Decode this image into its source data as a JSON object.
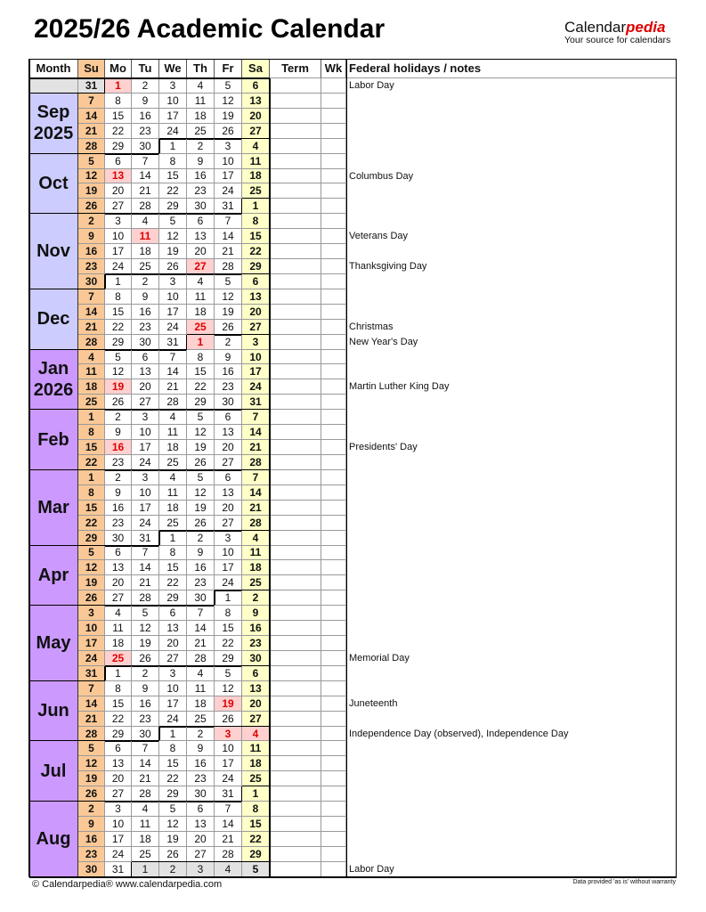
{
  "title": "2025/26 Academic Calendar",
  "logo": {
    "brand_main": "Calendar",
    "brand_accent": "pedia",
    "tagline": "Your source for calendars"
  },
  "headers": [
    "Month",
    "Su",
    "Mo",
    "Tu",
    "We",
    "Th",
    "Fr",
    "Sa",
    "Term",
    "Wk",
    "Federal holidays / notes"
  ],
  "colors": {
    "sunday": "#fac896",
    "saturday": "#ffffc8",
    "holiday_bg": "#ffd0d0",
    "holiday_text": "#e00000",
    "outside": "#e2e2e2",
    "month_fall": "#ccccff",
    "month_spring": "#cc99ff"
  },
  "lead_week": {
    "days": [
      31,
      1,
      2,
      3,
      4,
      5,
      6
    ],
    "holiday_cols": [
      1
    ],
    "outside_cols": [
      0
    ],
    "note": "Labor Day"
  },
  "months": [
    {
      "name": "Sep",
      "year": "2025",
      "color": "#ccccff",
      "weeks": [
        {
          "days": [
            7,
            8,
            9,
            10,
            11,
            12,
            13
          ]
        },
        {
          "days": [
            14,
            15,
            16,
            17,
            18,
            19,
            20
          ]
        },
        {
          "days": [
            21,
            22,
            23,
            24,
            25,
            26,
            27
          ]
        },
        {
          "days": [
            28,
            29,
            30,
            1,
            2,
            3,
            4
          ]
        }
      ]
    },
    {
      "name": "Oct",
      "year": "",
      "color": "#ccccff",
      "weeks": [
        {
          "days": [
            5,
            6,
            7,
            8,
            9,
            10,
            11
          ]
        },
        {
          "days": [
            12,
            13,
            14,
            15,
            16,
            17,
            18
          ],
          "holiday_cols": [
            1
          ],
          "note": "Columbus Day"
        },
        {
          "days": [
            19,
            20,
            21,
            22,
            23,
            24,
            25
          ]
        },
        {
          "days": [
            26,
            27,
            28,
            29,
            30,
            31,
            1
          ]
        }
      ]
    },
    {
      "name": "Nov",
      "year": "",
      "color": "#ccccff",
      "weeks": [
        {
          "days": [
            2,
            3,
            4,
            5,
            6,
            7,
            8
          ]
        },
        {
          "days": [
            9,
            10,
            11,
            12,
            13,
            14,
            15
          ],
          "holiday_cols": [
            2
          ],
          "note": "Veterans Day"
        },
        {
          "days": [
            16,
            17,
            18,
            19,
            20,
            21,
            22
          ]
        },
        {
          "days": [
            23,
            24,
            25,
            26,
            27,
            28,
            29
          ],
          "holiday_cols": [
            4
          ],
          "note": "Thanksgiving Day"
        },
        {
          "days": [
            30,
            1,
            2,
            3,
            4,
            5,
            6
          ]
        }
      ]
    },
    {
      "name": "Dec",
      "year": "",
      "color": "#ccccff",
      "weeks": [
        {
          "days": [
            7,
            8,
            9,
            10,
            11,
            12,
            13
          ]
        },
        {
          "days": [
            14,
            15,
            16,
            17,
            18,
            19,
            20
          ]
        },
        {
          "days": [
            21,
            22,
            23,
            24,
            25,
            26,
            27
          ],
          "holiday_cols": [
            4
          ],
          "note": "Christmas"
        },
        {
          "days": [
            28,
            29,
            30,
            31,
            1,
            2,
            3
          ],
          "holiday_cols": [
            4
          ],
          "note": "New Year's Day"
        }
      ]
    },
    {
      "name": "Jan",
      "year": "2026",
      "color": "#cc99ff",
      "weeks": [
        {
          "days": [
            4,
            5,
            6,
            7,
            8,
            9,
            10
          ]
        },
        {
          "days": [
            11,
            12,
            13,
            14,
            15,
            16,
            17
          ]
        },
        {
          "days": [
            18,
            19,
            20,
            21,
            22,
            23,
            24
          ],
          "holiday_cols": [
            1
          ],
          "note": "Martin Luther King Day"
        },
        {
          "days": [
            25,
            26,
            27,
            28,
            29,
            30,
            31
          ]
        }
      ]
    },
    {
      "name": "Feb",
      "year": "",
      "color": "#cc99ff",
      "weeks": [
        {
          "days": [
            1,
            2,
            3,
            4,
            5,
            6,
            7
          ]
        },
        {
          "days": [
            8,
            9,
            10,
            11,
            12,
            13,
            14
          ]
        },
        {
          "days": [
            15,
            16,
            17,
            18,
            19,
            20,
            21
          ],
          "holiday_cols": [
            1
          ],
          "note": "Presidents' Day"
        },
        {
          "days": [
            22,
            23,
            24,
            25,
            26,
            27,
            28
          ]
        }
      ]
    },
    {
      "name": "Mar",
      "year": "",
      "color": "#cc99ff",
      "weeks": [
        {
          "days": [
            1,
            2,
            3,
            4,
            5,
            6,
            7
          ]
        },
        {
          "days": [
            8,
            9,
            10,
            11,
            12,
            13,
            14
          ]
        },
        {
          "days": [
            15,
            16,
            17,
            18,
            19,
            20,
            21
          ]
        },
        {
          "days": [
            22,
            23,
            24,
            25,
            26,
            27,
            28
          ]
        },
        {
          "days": [
            29,
            30,
            31,
            1,
            2,
            3,
            4
          ]
        }
      ]
    },
    {
      "name": "Apr",
      "year": "",
      "color": "#cc99ff",
      "weeks": [
        {
          "days": [
            5,
            6,
            7,
            8,
            9,
            10,
            11
          ]
        },
        {
          "days": [
            12,
            13,
            14,
            15,
            16,
            17,
            18
          ]
        },
        {
          "days": [
            19,
            20,
            21,
            22,
            23,
            24,
            25
          ]
        },
        {
          "days": [
            26,
            27,
            28,
            29,
            30,
            1,
            2
          ]
        }
      ]
    },
    {
      "name": "May",
      "year": "",
      "color": "#cc99ff",
      "weeks": [
        {
          "days": [
            3,
            4,
            5,
            6,
            7,
            8,
            9
          ]
        },
        {
          "days": [
            10,
            11,
            12,
            13,
            14,
            15,
            16
          ]
        },
        {
          "days": [
            17,
            18,
            19,
            20,
            21,
            22,
            23
          ]
        },
        {
          "days": [
            24,
            25,
            26,
            27,
            28,
            29,
            30
          ],
          "holiday_cols": [
            1
          ],
          "note": "Memorial Day"
        },
        {
          "days": [
            31,
            1,
            2,
            3,
            4,
            5,
            6
          ]
        }
      ]
    },
    {
      "name": "Jun",
      "year": "",
      "color": "#cc99ff",
      "weeks": [
        {
          "days": [
            7,
            8,
            9,
            10,
            11,
            12,
            13
          ]
        },
        {
          "days": [
            14,
            15,
            16,
            17,
            18,
            19,
            20
          ],
          "holiday_cols": [
            5
          ],
          "note": "Juneteenth"
        },
        {
          "days": [
            21,
            22,
            23,
            24,
            25,
            26,
            27
          ]
        },
        {
          "days": [
            28,
            29,
            30,
            1,
            2,
            3,
            4
          ],
          "holiday_cols": [
            5,
            6
          ],
          "note": "Independence Day (observed), Independence Day"
        }
      ]
    },
    {
      "name": "Jul",
      "year": "",
      "color": "#cc99ff",
      "weeks": [
        {
          "days": [
            5,
            6,
            7,
            8,
            9,
            10,
            11
          ]
        },
        {
          "days": [
            12,
            13,
            14,
            15,
            16,
            17,
            18
          ]
        },
        {
          "days": [
            19,
            20,
            21,
            22,
            23,
            24,
            25
          ]
        },
        {
          "days": [
            26,
            27,
            28,
            29,
            30,
            31,
            1
          ]
        }
      ]
    },
    {
      "name": "Aug",
      "year": "",
      "color": "#cc99ff",
      "weeks": [
        {
          "days": [
            2,
            3,
            4,
            5,
            6,
            7,
            8
          ]
        },
        {
          "days": [
            9,
            10,
            11,
            12,
            13,
            14,
            15
          ]
        },
        {
          "days": [
            16,
            17,
            18,
            19,
            20,
            21,
            22
          ]
        },
        {
          "days": [
            23,
            24,
            25,
            26,
            27,
            28,
            29
          ]
        },
        {
          "days": [
            30,
            31,
            1,
            2,
            3,
            4,
            5
          ],
          "outside_cols": [
            2,
            3,
            4,
            5,
            6
          ],
          "note": "Labor Day"
        }
      ]
    }
  ],
  "footer": {
    "left": "© Calendarpedia®   www.calendarpedia.com",
    "right": "Data provided 'as is' without warranty"
  }
}
